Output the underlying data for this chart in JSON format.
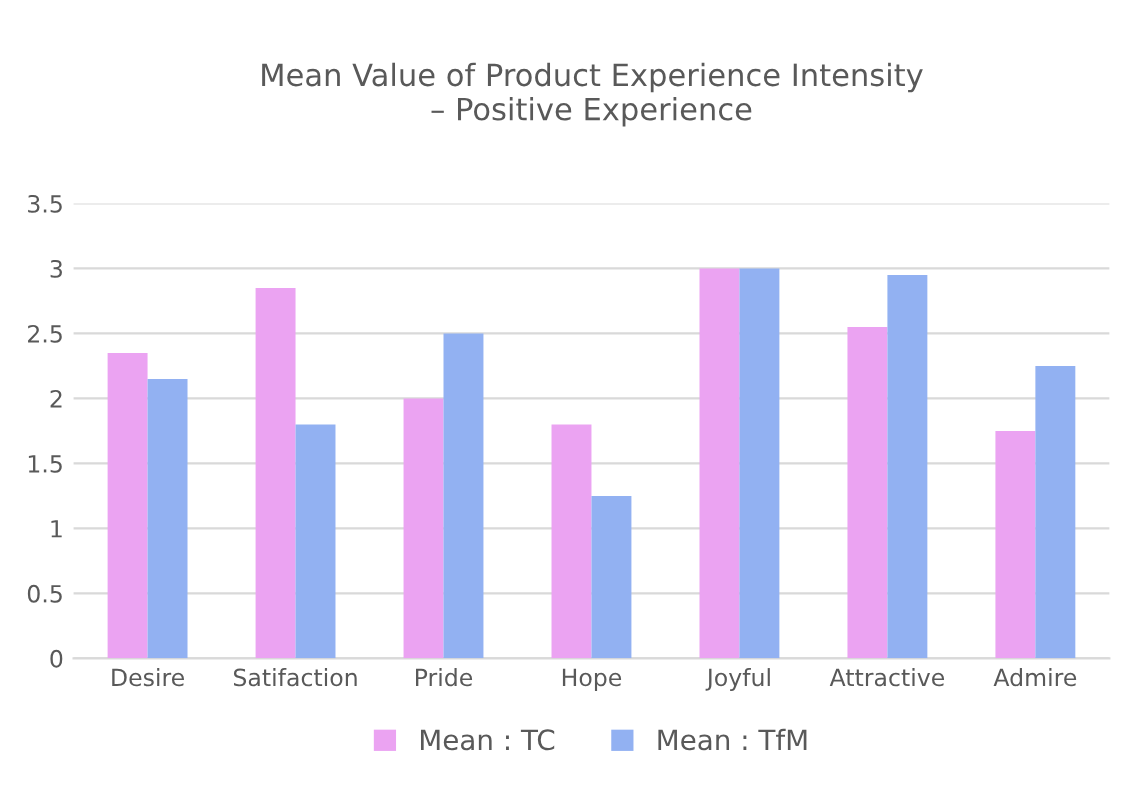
{
  "chart_data": {
    "type": "bar",
    "title": "Mean Value of Product Experience Intensity\n– Positive Experience",
    "categories": [
      "Desire",
      "Satifaction",
      "Pride",
      "Hope",
      "Joyful",
      "Attractive",
      "Admire"
    ],
    "series": [
      {
        "name": "Mean : TC",
        "color": "#eba3f2",
        "values": [
          2.35,
          2.85,
          2.0,
          1.8,
          3.0,
          2.55,
          1.75
        ]
      },
      {
        "name": "Mean : TfM",
        "color": "#92b1f2",
        "values": [
          2.15,
          1.8,
          2.5,
          1.25,
          3.0,
          2.95,
          2.25
        ]
      }
    ],
    "ylim": [
      0,
      3.5
    ],
    "yticks": [
      0,
      0.5,
      1,
      1.5,
      2,
      2.5,
      3,
      3.5
    ],
    "grid": "y",
    "legend": "bottom"
  }
}
